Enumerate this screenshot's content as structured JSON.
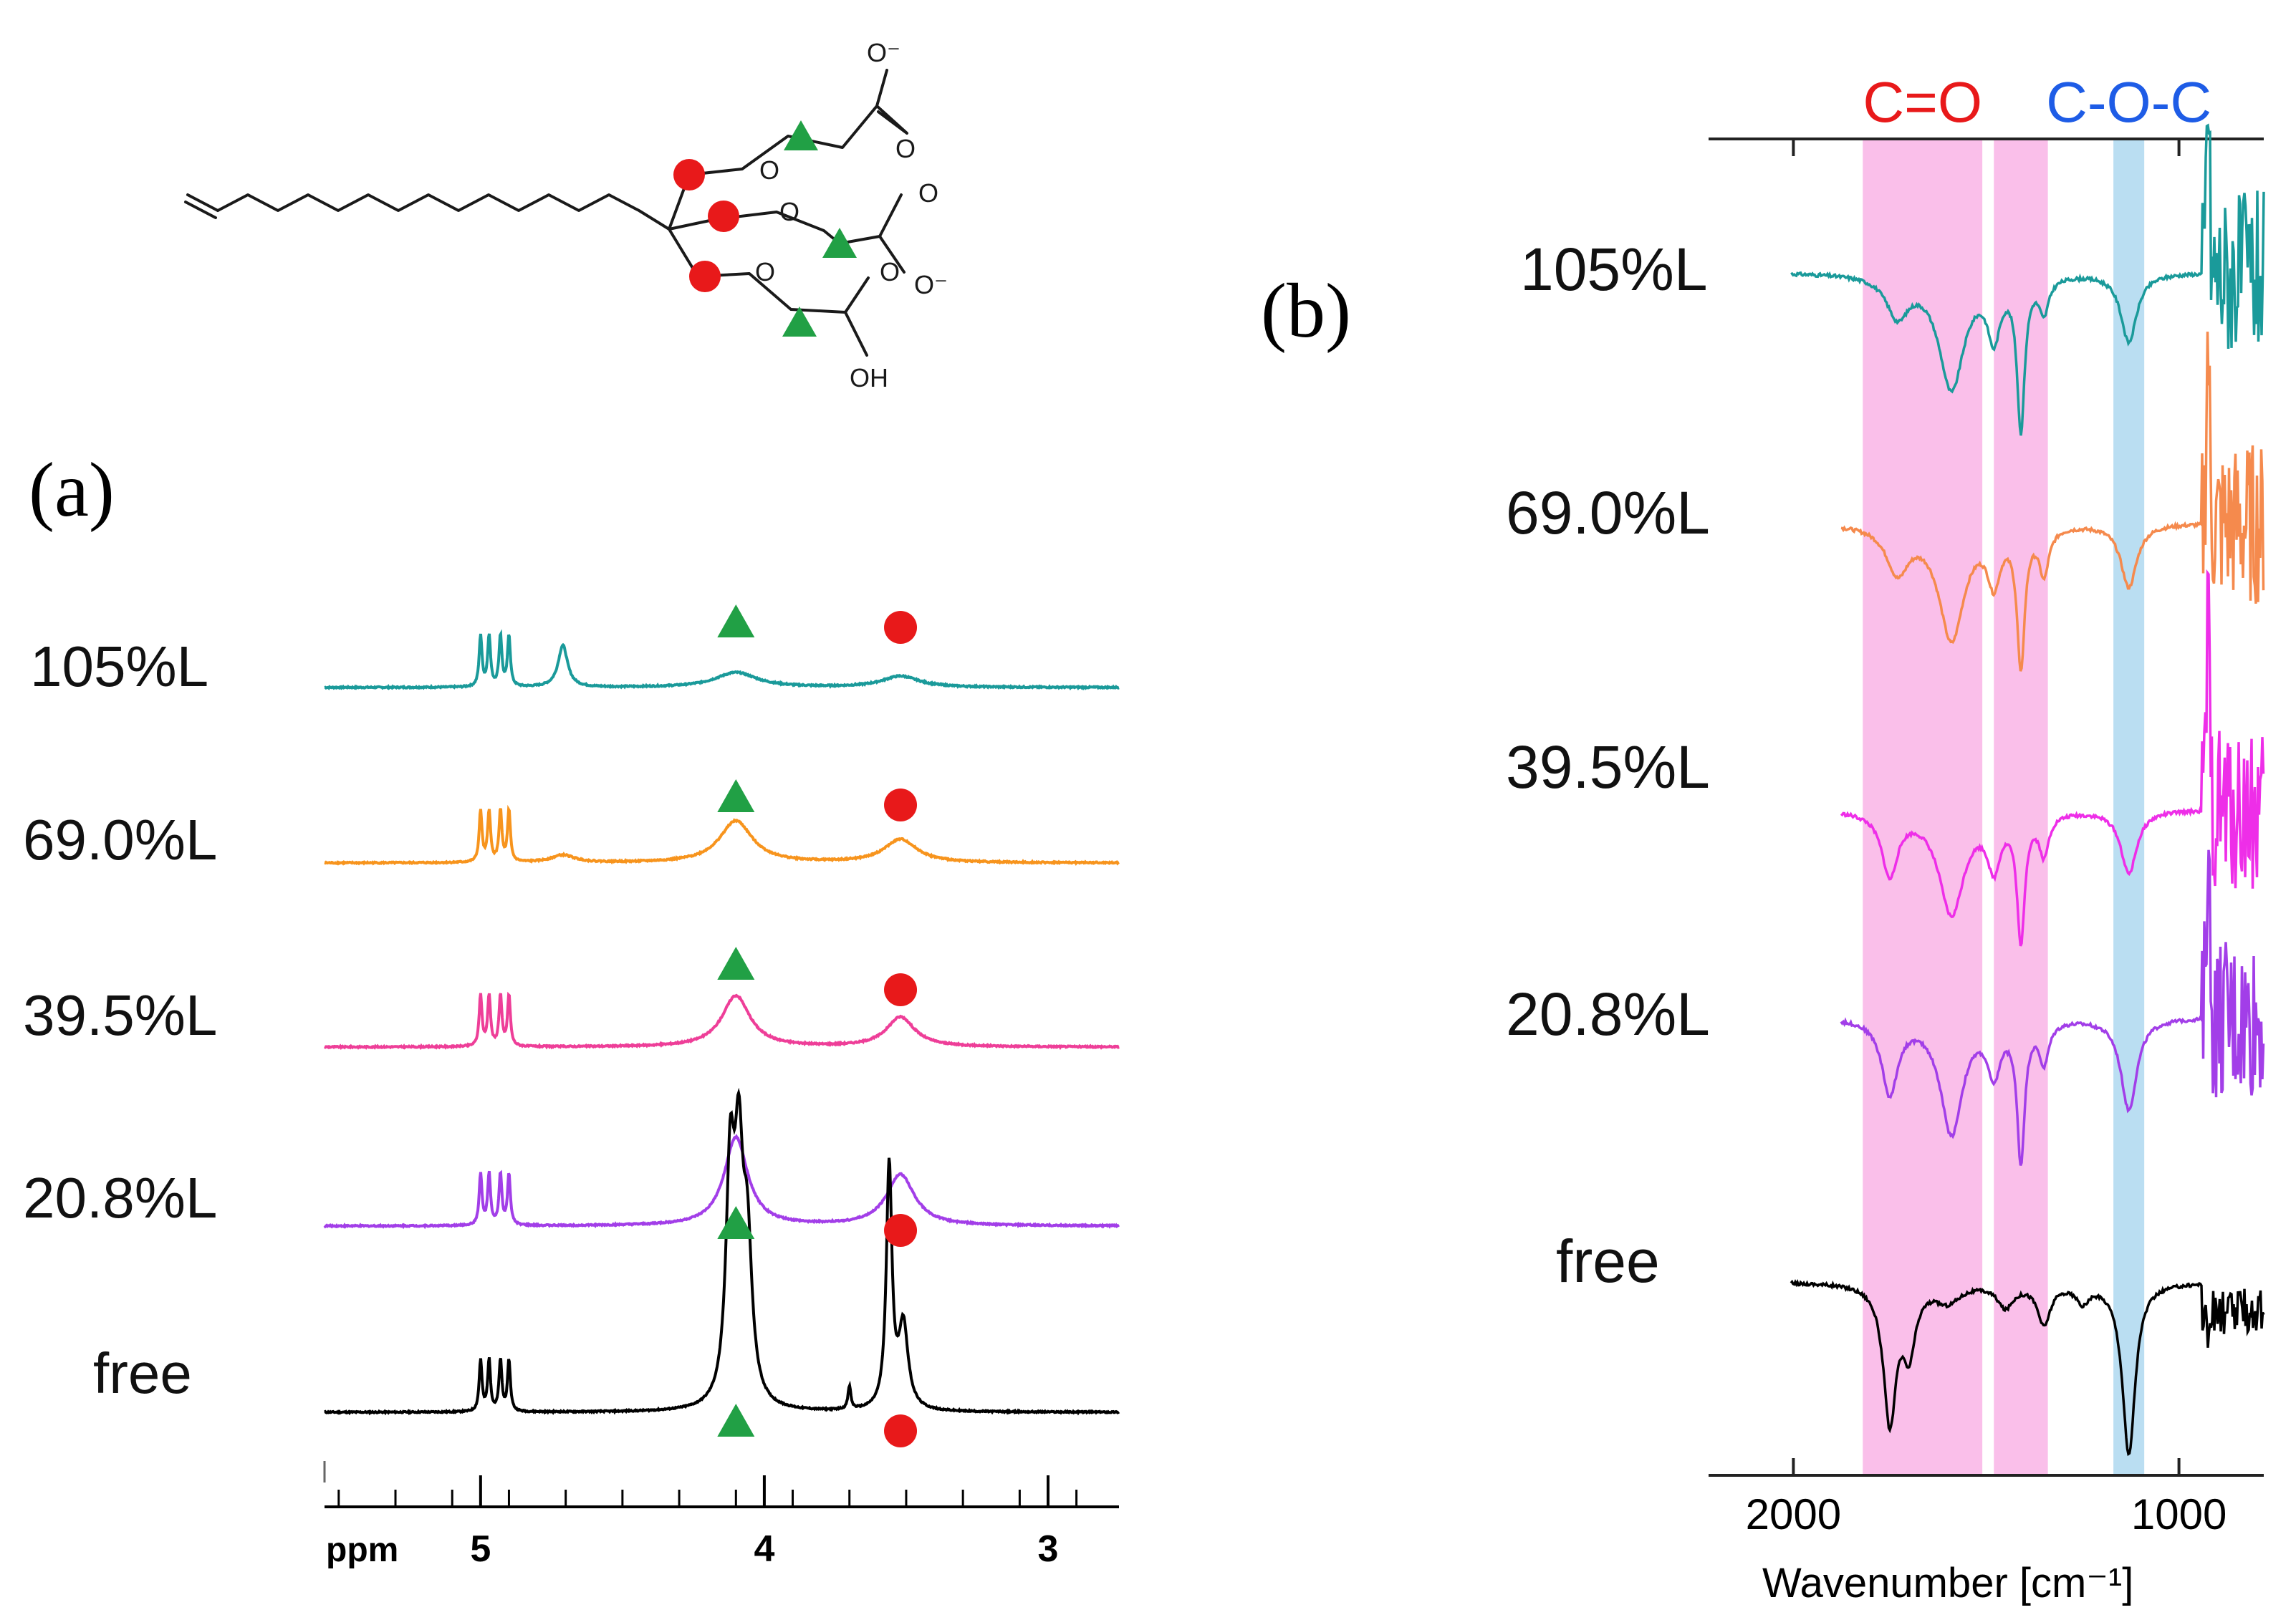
{
  "panel_a": {
    "label": "(a)"
  },
  "panel_b": {
    "label": "(b)"
  },
  "molecule": {
    "o_minus_1": "O⁻",
    "o_minus_2": "O⁻",
    "oh": "OH",
    "o": "O"
  },
  "legend": {
    "circle_color": "#e8191a",
    "triangle_color": "#21a045"
  },
  "chart_data": [
    {
      "type": "line",
      "title": "",
      "xlabel": "",
      "xunit_label": "ppm",
      "xlim": [
        5.55,
        2.75
      ],
      "xticks": [
        5,
        4,
        3
      ],
      "xtick_labels": [
        "5",
        "4",
        "3"
      ],
      "series": [
        {
          "name": "105%L",
          "color": "#1a9a9a",
          "peaks": [
            {
              "x": 4.71,
              "h": 0.45,
              "w": 0.02
            },
            {
              "x": 4.1,
              "h": 0.16,
              "w": 0.09
            },
            {
              "x": 3.52,
              "h": 0.12,
              "w": 0.08
            }
          ]
        },
        {
          "name": "69.0%L",
          "color": "#f7941d",
          "peaks": [
            {
              "x": 4.71,
              "h": 0.08,
              "w": 0.05
            },
            {
              "x": 4.1,
              "h": 0.45,
              "w": 0.07
            },
            {
              "x": 3.52,
              "h": 0.25,
              "w": 0.07
            }
          ]
        },
        {
          "name": "39.5%L",
          "color": "#ee3e98",
          "peaks": [
            {
              "x": 4.1,
              "h": 0.55,
              "w": 0.06
            },
            {
              "x": 3.52,
              "h": 0.32,
              "w": 0.06
            }
          ]
        },
        {
          "name": "20.8%L",
          "color": "#a23ee8",
          "peaks": [
            {
              "x": 4.1,
              "h": 0.95,
              "w": 0.05
            },
            {
              "x": 3.52,
              "h": 0.55,
              "w": 0.06
            }
          ]
        },
        {
          "name": "free",
          "color": "#000000",
          "peaks": [
            {
              "x": 4.12,
              "h": 2.4,
              "w": 0.018
            },
            {
              "x": 4.09,
              "h": 2.3,
              "w": 0.018
            },
            {
              "x": 4.06,
              "h": 1.6,
              "w": 0.02
            },
            {
              "x": 3.56,
              "h": 2.6,
              "w": 0.012
            },
            {
              "x": 3.51,
              "h": 0.9,
              "w": 0.02
            },
            {
              "x": 3.7,
              "h": 0.25,
              "w": 0.006
            }
          ]
        }
      ],
      "common_peaks": [
        {
          "x": 5.0,
          "h": 0.55
        },
        {
          "x": 4.97,
          "h": 0.55
        },
        {
          "x": 4.93,
          "h": 0.55
        },
        {
          "x": 4.9,
          "h": 0.55
        }
      ],
      "markers": {
        "triangle_ppm": 4.1,
        "circle_ppm": 3.52
      }
    },
    {
      "type": "line",
      "title": "",
      "xlabel": "Wavenumber [cm⁻¹]",
      "xlim": [
        2220,
        780
      ],
      "xticks": [
        2000,
        1000
      ],
      "xtick_labels": [
        "2000",
        "1000"
      ],
      "regions": [
        {
          "label": "C=O",
          "from": 1820,
          "to": 1510,
          "color": "#f9b4e6",
          "label_color": "#e8191a"
        },
        {
          "label": "",
          "from": 1480,
          "to": 1340,
          "color": "#f9b4e6",
          "label_color": ""
        },
        {
          "label": "C-O-C",
          "from": 1170,
          "to": 1090,
          "color": "#aed8f0",
          "label_color": "#1e5ce6"
        }
      ],
      "series": [
        {
          "name": "105%L",
          "color": "#1a9a9a",
          "dips": [
            {
              "x": 1730,
              "d": 0.35,
              "w": 35
            },
            {
              "x": 1590,
              "d": 1.0,
              "w": 40
            },
            {
              "x": 1410,
              "d": 1.3,
              "w": 12
            },
            {
              "x": 1480,
              "d": 0.5,
              "w": 20
            },
            {
              "x": 1350,
              "d": 0.3,
              "w": 15
            },
            {
              "x": 1130,
              "d": 0.6,
              "w": 25
            }
          ]
        },
        {
          "name": "69.0%L",
          "color": "#f58a4d",
          "dips": [
            {
              "x": 1730,
              "d": 0.4,
              "w": 35
            },
            {
              "x": 1590,
              "d": 1.0,
              "w": 40
            },
            {
              "x": 1410,
              "d": 1.2,
              "w": 12
            },
            {
              "x": 1480,
              "d": 0.45,
              "w": 20
            },
            {
              "x": 1350,
              "d": 0.4,
              "w": 15
            },
            {
              "x": 1130,
              "d": 0.55,
              "w": 25
            }
          ]
        },
        {
          "name": "39.5%L",
          "color": "#ee2ee8",
          "dips": [
            {
              "x": 1750,
              "d": 0.55,
              "w": 25
            },
            {
              "x": 1590,
              "d": 0.9,
              "w": 40
            },
            {
              "x": 1410,
              "d": 1.1,
              "w": 12
            },
            {
              "x": 1480,
              "d": 0.45,
              "w": 20
            },
            {
              "x": 1350,
              "d": 0.35,
              "w": 15
            },
            {
              "x": 1130,
              "d": 0.55,
              "w": 25
            }
          ]
        },
        {
          "name": "20.8%L",
          "color": "#a23ee8",
          "dips": [
            {
              "x": 1750,
              "d": 0.65,
              "w": 25
            },
            {
              "x": 1590,
              "d": 1.0,
              "w": 35
            },
            {
              "x": 1410,
              "d": 1.2,
              "w": 12
            },
            {
              "x": 1480,
              "d": 0.45,
              "w": 20
            },
            {
              "x": 1350,
              "d": 0.35,
              "w": 15
            },
            {
              "x": 1130,
              "d": 0.8,
              "w": 25
            }
          ]
        },
        {
          "name": "free",
          "color": "#000000",
          "dips": [
            {
              "x": 1750,
              "d": 1.2,
              "w": 20
            },
            {
              "x": 1700,
              "d": 0.55,
              "w": 20
            },
            {
              "x": 1600,
              "d": 0.15,
              "w": 40
            },
            {
              "x": 1450,
              "d": 0.2,
              "w": 25
            },
            {
              "x": 1350,
              "d": 0.35,
              "w": 20
            },
            {
              "x": 1130,
              "d": 1.5,
              "w": 20
            },
            {
              "x": 1250,
              "d": 0.15,
              "w": 20
            }
          ]
        }
      ]
    }
  ]
}
